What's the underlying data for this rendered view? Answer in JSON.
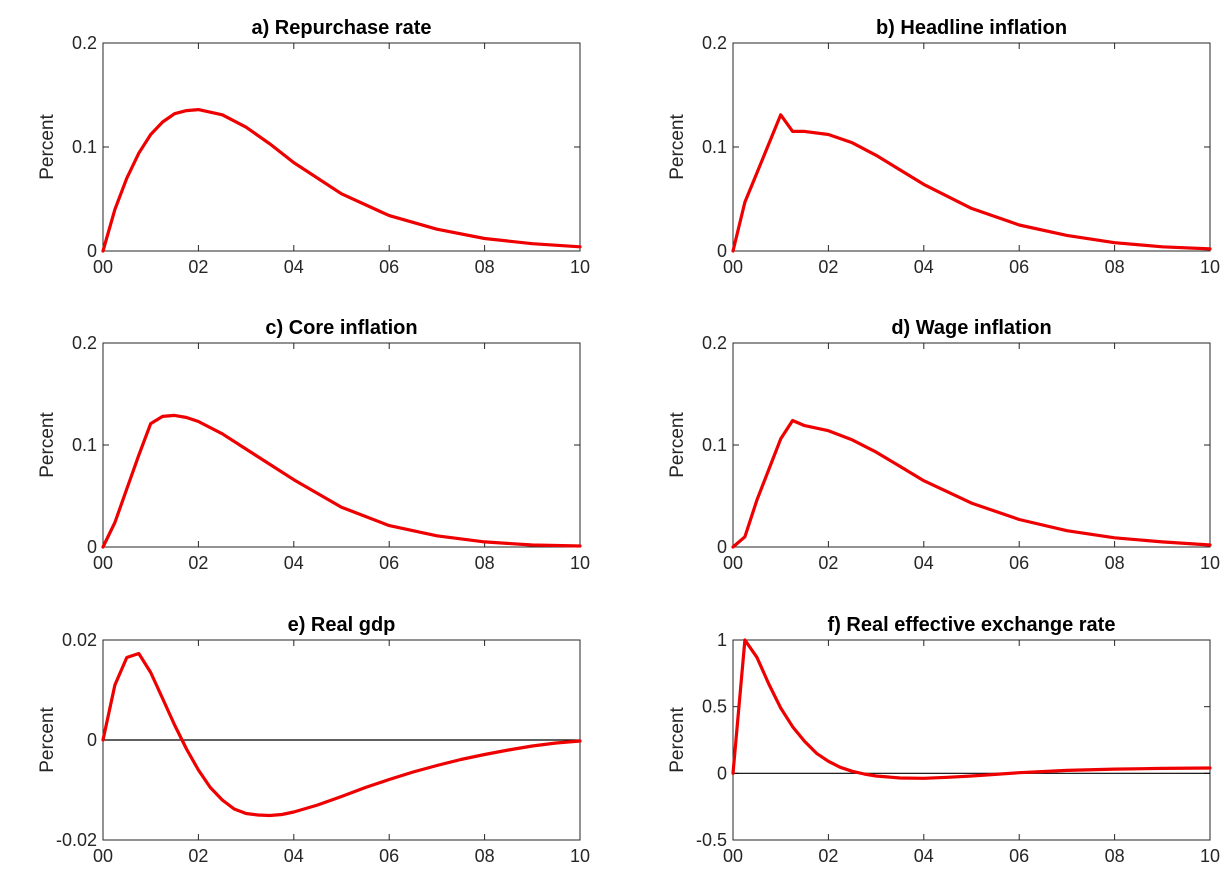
{
  "figure": {
    "ylabel": "Percent"
  },
  "colors": {
    "line": "#ee0000",
    "axis": "#262626",
    "zero_line": "#000000"
  },
  "chart_data": [
    {
      "type": "line",
      "title": "a) Repurchase rate",
      "ylabel": "Percent",
      "x_ticks": [
        "00",
        "02",
        "04",
        "06",
        "08",
        "10"
      ],
      "xlim": [
        0,
        10
      ],
      "ylim": [
        0,
        0.2
      ],
      "y_ticks": [
        "0",
        "0.1",
        "0.2"
      ],
      "y_tick_values": [
        0,
        0.1,
        0.2
      ],
      "zero_line": false,
      "series": [
        {
          "x": [
            0,
            0.25,
            0.5,
            0.75,
            1,
            1.25,
            1.5,
            1.75,
            2,
            2.5,
            3,
            3.5,
            4,
            5,
            6,
            7,
            8,
            9,
            10
          ],
          "y": [
            0,
            0.04,
            0.07,
            0.094,
            0.112,
            0.124,
            0.132,
            0.135,
            0.136,
            0.131,
            0.119,
            0.103,
            0.085,
            0.055,
            0.034,
            0.021,
            0.012,
            0.007,
            0.004
          ]
        }
      ]
    },
    {
      "type": "line",
      "title": "b) Headline inflation",
      "ylabel": "Percent",
      "x_ticks": [
        "00",
        "02",
        "04",
        "06",
        "08",
        "10"
      ],
      "xlim": [
        0,
        10
      ],
      "ylim": [
        0,
        0.2
      ],
      "y_ticks": [
        "0",
        "0.1",
        "0.2"
      ],
      "y_tick_values": [
        0,
        0.1,
        0.2
      ],
      "zero_line": false,
      "series": [
        {
          "x": [
            0,
            0.25,
            0.5,
            0.75,
            1,
            1.25,
            1.5,
            2,
            2.5,
            3,
            3.5,
            4,
            5,
            6,
            7,
            8,
            9,
            10
          ],
          "y": [
            0,
            0.047,
            0.075,
            0.103,
            0.131,
            0.115,
            0.115,
            0.112,
            0.104,
            0.092,
            0.078,
            0.064,
            0.041,
            0.025,
            0.015,
            0.008,
            0.004,
            0.002
          ]
        }
      ]
    },
    {
      "type": "line",
      "title": "c) Core inflation",
      "ylabel": "Percent",
      "x_ticks": [
        "00",
        "02",
        "04",
        "06",
        "08",
        "10"
      ],
      "xlim": [
        0,
        10
      ],
      "ylim": [
        0,
        0.2
      ],
      "y_ticks": [
        "0",
        "0.1",
        "0.2"
      ],
      "y_tick_values": [
        0,
        0.1,
        0.2
      ],
      "zero_line": false,
      "series": [
        {
          "x": [
            0,
            0.25,
            0.5,
            0.75,
            1,
            1.25,
            1.5,
            1.75,
            2,
            2.5,
            3,
            3.5,
            4,
            5,
            6,
            7,
            8,
            9,
            10
          ],
          "y": [
            0,
            0.024,
            0.057,
            0.09,
            0.121,
            0.128,
            0.129,
            0.127,
            0.123,
            0.111,
            0.096,
            0.081,
            0.066,
            0.039,
            0.021,
            0.011,
            0.005,
            0.002,
            0.001
          ]
        }
      ]
    },
    {
      "type": "line",
      "title": "d) Wage inflation",
      "ylabel": "Percent",
      "x_ticks": [
        "00",
        "02",
        "04",
        "06",
        "08",
        "10"
      ],
      "xlim": [
        0,
        10
      ],
      "ylim": [
        0,
        0.2
      ],
      "y_ticks": [
        "0",
        "0.1",
        "0.2"
      ],
      "y_tick_values": [
        0,
        0.1,
        0.2
      ],
      "zero_line": false,
      "series": [
        {
          "x": [
            0,
            0.25,
            0.5,
            0.75,
            1,
            1.25,
            1.5,
            2,
            2.5,
            3,
            3.5,
            4,
            5,
            6,
            7,
            8,
            9,
            10
          ],
          "y": [
            0,
            0.01,
            0.046,
            0.076,
            0.106,
            0.124,
            0.119,
            0.114,
            0.105,
            0.093,
            0.079,
            0.065,
            0.043,
            0.027,
            0.016,
            0.009,
            0.005,
            0.002
          ]
        }
      ]
    },
    {
      "type": "line",
      "title": "e) Real gdp",
      "ylabel": "Percent",
      "x_ticks": [
        "00",
        "02",
        "04",
        "06",
        "08",
        "10"
      ],
      "xlim": [
        0,
        10
      ],
      "ylim": [
        -0.02,
        0.02
      ],
      "y_ticks": [
        "-0.02",
        "0",
        "0.02"
      ],
      "y_tick_values": [
        -0.02,
        0,
        0.02
      ],
      "zero_line": true,
      "series": [
        {
          "x": [
            0,
            0.25,
            0.5,
            0.75,
            1,
            1.25,
            1.5,
            1.75,
            2,
            2.25,
            2.5,
            2.75,
            3,
            3.25,
            3.5,
            3.75,
            4,
            4.5,
            5,
            5.5,
            6,
            6.5,
            7,
            7.5,
            8,
            8.5,
            9,
            9.5,
            10
          ],
          "y": [
            0,
            0.011,
            0.0165,
            0.0173,
            0.0135,
            0.0083,
            0.003,
            -0.0018,
            -0.006,
            -0.0095,
            -0.012,
            -0.0138,
            -0.0147,
            -0.015,
            -0.0151,
            -0.0149,
            -0.0144,
            -0.013,
            -0.0113,
            -0.0095,
            -0.0079,
            -0.0064,
            -0.0051,
            -0.0039,
            -0.0029,
            -0.002,
            -0.0012,
            -0.0006,
            -0.0002
          ]
        }
      ]
    },
    {
      "type": "line",
      "title": "f) Real effective exchange rate",
      "ylabel": "Percent",
      "x_ticks": [
        "00",
        "02",
        "04",
        "06",
        "08",
        "10"
      ],
      "xlim": [
        0,
        10
      ],
      "ylim": [
        -0.5,
        1
      ],
      "y_ticks": [
        "-0.5",
        "0",
        "0.5",
        "1"
      ],
      "y_tick_values": [
        -0.5,
        0,
        0.5,
        1
      ],
      "zero_line": true,
      "series": [
        {
          "x": [
            0,
            0.25,
            0.5,
            0.75,
            1,
            1.25,
            1.5,
            1.75,
            2,
            2.25,
            2.5,
            2.75,
            3,
            3.5,
            4,
            4.5,
            5,
            6,
            7,
            8,
            9,
            10
          ],
          "y": [
            0,
            1.0,
            0.87,
            0.67,
            0.49,
            0.35,
            0.24,
            0.15,
            0.09,
            0.045,
            0.015,
            -0.005,
            -0.02,
            -0.035,
            -0.037,
            -0.03,
            -0.02,
            0.005,
            0.022,
            0.032,
            0.037,
            0.04
          ]
        }
      ]
    }
  ]
}
